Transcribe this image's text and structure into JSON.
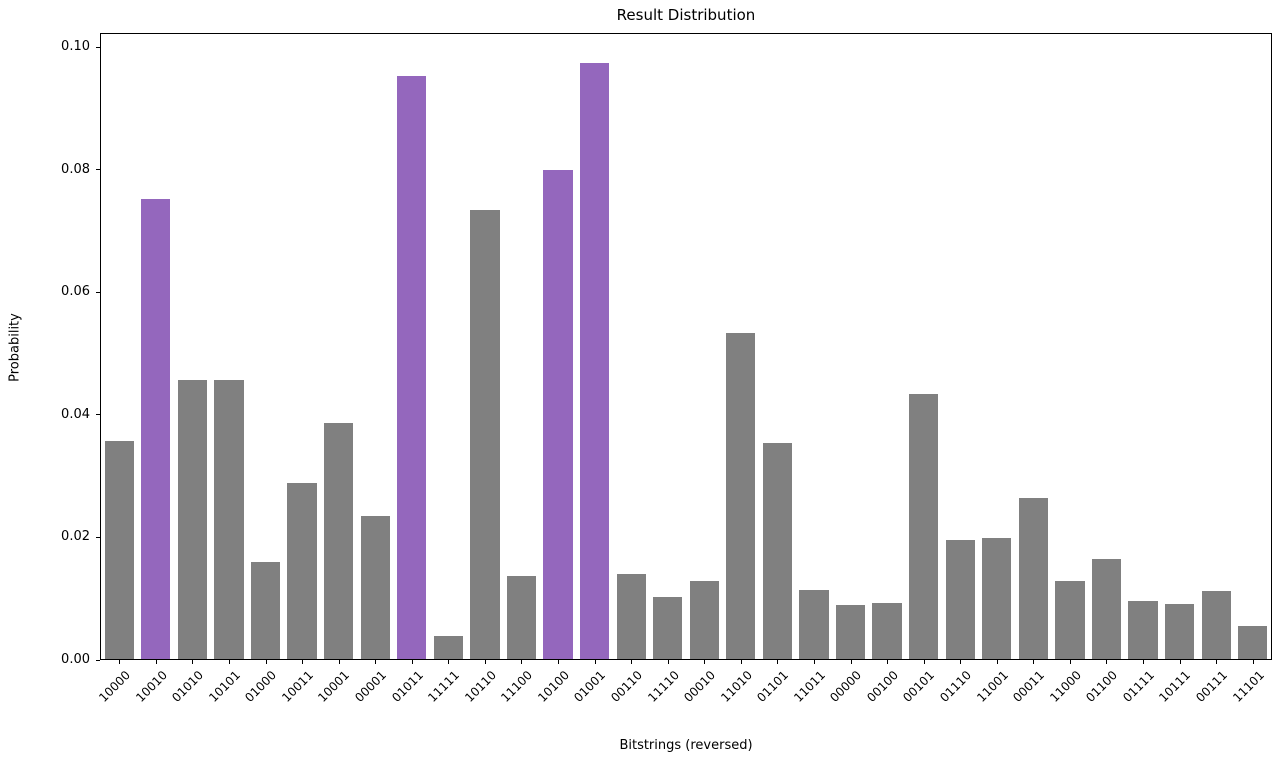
{
  "chart_data": {
    "type": "bar",
    "title": "Result Distribution",
    "xlabel": "Bitstrings (reversed)",
    "ylabel": "Probability",
    "categories": [
      "10000",
      "10010",
      "01010",
      "10101",
      "01000",
      "10011",
      "10001",
      "00001",
      "01011",
      "11111",
      "10110",
      "11100",
      "10100",
      "01001",
      "00110",
      "11110",
      "00010",
      "11010",
      "01101",
      "11011",
      "00000",
      "00100",
      "00101",
      "01110",
      "11001",
      "00011",
      "11000",
      "01100",
      "01111",
      "10111",
      "00111",
      "11101"
    ],
    "values": [
      0.0355,
      0.075,
      0.0455,
      0.0455,
      0.0158,
      0.0287,
      0.0385,
      0.0234,
      0.0952,
      0.0038,
      0.0732,
      0.0135,
      0.0798,
      0.0972,
      0.0139,
      0.0101,
      0.0127,
      0.0532,
      0.0352,
      0.0113,
      0.0088,
      0.0092,
      0.0432,
      0.0195,
      0.0197,
      0.0262,
      0.0127,
      0.0163,
      0.0094,
      0.0089,
      0.0111,
      0.0054
    ],
    "highlighted": [
      "10010",
      "01011",
      "10100",
      "01001"
    ],
    "colors": {
      "bar": "#808080",
      "highlight": "#9467bd"
    },
    "yticks": [
      "0.00",
      "0.02",
      "0.04",
      "0.06",
      "0.08",
      "0.10"
    ],
    "ylim": [
      0,
      0.102
    ],
    "grid": false,
    "legend": null,
    "bar_width_ratio": 0.8
  }
}
